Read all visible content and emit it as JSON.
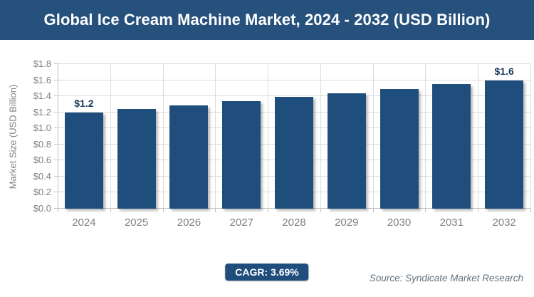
{
  "header": {
    "title": "Global Ice Cream Machine Market, 2024 - 2032 (USD Billion)"
  },
  "chart_data": {
    "type": "bar",
    "title": "Global Ice Cream Machine Market, 2024 - 2032 (USD Billion)",
    "categories": [
      "2024",
      "2025",
      "2026",
      "2027",
      "2028",
      "2029",
      "2030",
      "2031",
      "2032"
    ],
    "values": [
      1.2,
      1.24,
      1.29,
      1.34,
      1.39,
      1.44,
      1.49,
      1.55,
      1.6
    ],
    "point_labels": [
      {
        "index": 0,
        "text": "$1.2"
      },
      {
        "index": 8,
        "text": "$1.6"
      }
    ],
    "xlabel": "",
    "ylabel": "Market Size (USD Billion)",
    "ylim": [
      0,
      1.8
    ],
    "y_tick_step": 0.2,
    "y_ticks": [
      "$0.0",
      "$0.2",
      "$0.4",
      "$0.6",
      "$0.8",
      "$1.0",
      "$1.2",
      "$1.4",
      "$1.6",
      "$1.8"
    ],
    "grid": true,
    "legend": "none"
  },
  "theme": {
    "banner_bg": "#26517D",
    "bar_color": "#1F4E7C",
    "gridline_color": "#DCDCDC",
    "axis_color": "#C0C0C0",
    "tick_label_color": "#808080",
    "value_label_color": "#17375E",
    "badge_bg": "#1F4E7C",
    "source_color": "#64717C"
  },
  "footer": {
    "cagr_label": "CAGR: 3.69%",
    "source": "Source: Syndicate Market Research"
  }
}
